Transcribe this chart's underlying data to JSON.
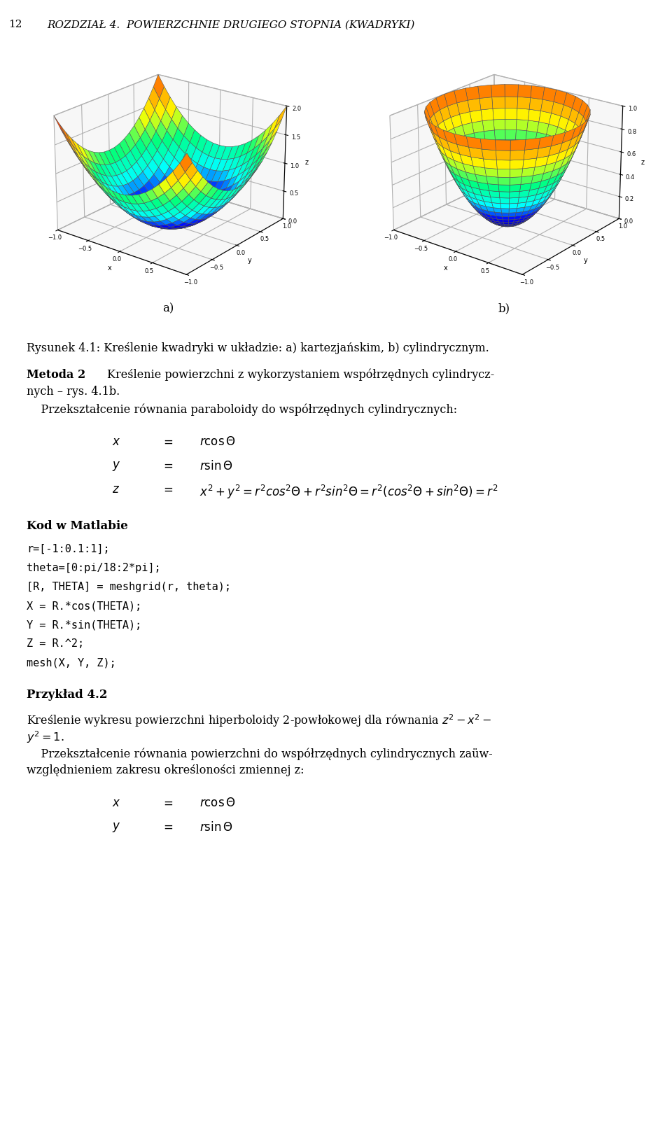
{
  "title_line": "12    ROZDZIAŁ 4.  POWIERZCHNIE DRUGIEGO STOPNIA (KWADRYKI)",
  "label_a": "a)",
  "label_b": "b)",
  "caption": "Rysunek 4.1: Kreślenie kwadryki w układzie: a) kartezjańskim, b) cylindrycznym.",
  "kod_header": "Kod w Matlabie",
  "code_lines": [
    "r=[-1:0.1:1];",
    "theta=[0:pi/18:2*pi];",
    "[R, THETA] = meshgrid(r, theta);",
    "X = R.*cos(THETA);",
    "Y = R.*sin(THETA);",
    "Z = R.^2;",
    "mesh(X, Y, Z);"
  ],
  "bg_color": "#ffffff",
  "text_color": "#000000"
}
